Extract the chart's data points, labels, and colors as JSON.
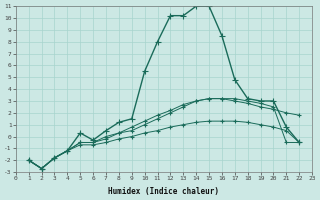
{
  "xlabel": "Humidex (Indice chaleur)",
  "background_color": "#cce8e4",
  "grid_color": "#a8d4ce",
  "line_color": "#1a6b5a",
  "xlim": [
    0,
    23
  ],
  "ylim": [
    -3,
    11
  ],
  "xticks": [
    0,
    1,
    2,
    3,
    4,
    5,
    6,
    7,
    8,
    9,
    10,
    11,
    12,
    13,
    14,
    15,
    16,
    17,
    18,
    19,
    20,
    21,
    22,
    23
  ],
  "yticks": [
    -3,
    -2,
    -1,
    0,
    1,
    2,
    3,
    4,
    5,
    6,
    7,
    8,
    9,
    10,
    11
  ],
  "lines": [
    {
      "x": [
        1,
        2,
        3,
        4,
        5,
        6,
        7,
        8,
        9,
        10,
        11,
        12,
        13,
        14,
        15,
        16,
        17,
        18,
        19,
        20,
        21,
        22
      ],
      "y": [
        -2,
        -2.7,
        -1.8,
        -1.2,
        0.3,
        -0.3,
        0.5,
        1.2,
        1.5,
        5.5,
        8.0,
        10.2,
        10.2,
        11.0,
        11.0,
        8.5,
        4.8,
        3.2,
        3.0,
        3.0,
        0.8,
        -0.5
      ],
      "lw": 1.0,
      "ms": 4
    },
    {
      "x": [
        1,
        2,
        3,
        4,
        5,
        6,
        7,
        8,
        9,
        10,
        11,
        12,
        13,
        14,
        15,
        16,
        17,
        18,
        19,
        20,
        21,
        22
      ],
      "y": [
        -2,
        -2.7,
        -1.8,
        -1.2,
        -0.5,
        -0.5,
        -0.2,
        0.3,
        0.5,
        1.0,
        1.5,
        2.0,
        2.5,
        3.0,
        3.2,
        3.2,
        3.2,
        3.0,
        2.8,
        2.5,
        -0.5,
        -0.5
      ],
      "lw": 0.7,
      "ms": 3
    },
    {
      "x": [
        1,
        2,
        3,
        4,
        5,
        6,
        7,
        8,
        9,
        10,
        11,
        12,
        13,
        14,
        15,
        16,
        17,
        18,
        19,
        20,
        21,
        22
      ],
      "y": [
        -2,
        -2.7,
        -1.8,
        -1.2,
        -0.5,
        -0.5,
        0.0,
        0.3,
        0.8,
        1.3,
        1.8,
        2.2,
        2.7,
        3.0,
        3.2,
        3.2,
        3.0,
        2.8,
        2.5,
        2.3,
        2.0,
        1.8
      ],
      "lw": 0.7,
      "ms": 3
    },
    {
      "x": [
        1,
        2,
        3,
        4,
        5,
        6,
        7,
        8,
        9,
        10,
        11,
        12,
        13,
        14,
        15,
        16,
        17,
        18,
        19,
        20,
        21,
        22
      ],
      "y": [
        -2,
        -2.7,
        -1.8,
        -1.2,
        -0.7,
        -0.7,
        -0.5,
        -0.2,
        0.0,
        0.3,
        0.5,
        0.8,
        1.0,
        1.2,
        1.3,
        1.3,
        1.3,
        1.2,
        1.0,
        0.8,
        0.5,
        -0.5
      ],
      "lw": 0.7,
      "ms": 3
    }
  ]
}
